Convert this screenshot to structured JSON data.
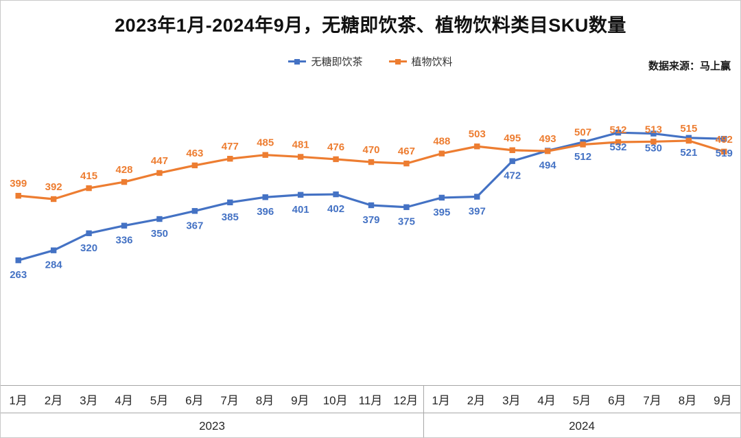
{
  "title": "2023年1月-2024年9月，无糖即饮茶、植物饮料类目SKU数量",
  "source_note": "数据来源：马上赢",
  "chart_data": {
    "type": "line",
    "title": "2023年1月-2024年9月，无糖即饮茶、植物饮料类目SKU数量",
    "legend_position": "top",
    "grid": false,
    "y_axis_visible": false,
    "data_labels": true,
    "ylim": [
      0,
      810
    ],
    "categories": [
      "1月",
      "2月",
      "3月",
      "4月",
      "5月",
      "6月",
      "7月",
      "8月",
      "9月",
      "10月",
      "11月",
      "12月",
      "1月",
      "2月",
      "3月",
      "4月",
      "5月",
      "6月",
      "7月",
      "8月",
      "9月"
    ],
    "category_groups": [
      {
        "label": "2023",
        "span": 12
      },
      {
        "label": "2024",
        "span": 9
      }
    ],
    "series": [
      {
        "id": "sugar-free-rtd-tea",
        "name": "无糖即饮茶",
        "color": "#4472C4",
        "marker": "square",
        "label_position": "below",
        "values": [
          263,
          284,
          320,
          336,
          350,
          367,
          385,
          396,
          401,
          402,
          379,
          375,
          395,
          397,
          472,
          494,
          512,
          532,
          530,
          521,
          519
        ]
      },
      {
        "id": "plant-beverage",
        "name": "植物饮料",
        "color": "#ED7D31",
        "marker": "square",
        "label_position": "above",
        "values": [
          399,
          392,
          415,
          428,
          447,
          463,
          477,
          485,
          481,
          476,
          470,
          467,
          488,
          503,
          495,
          493,
          507,
          512,
          513,
          515,
          492
        ]
      }
    ]
  }
}
